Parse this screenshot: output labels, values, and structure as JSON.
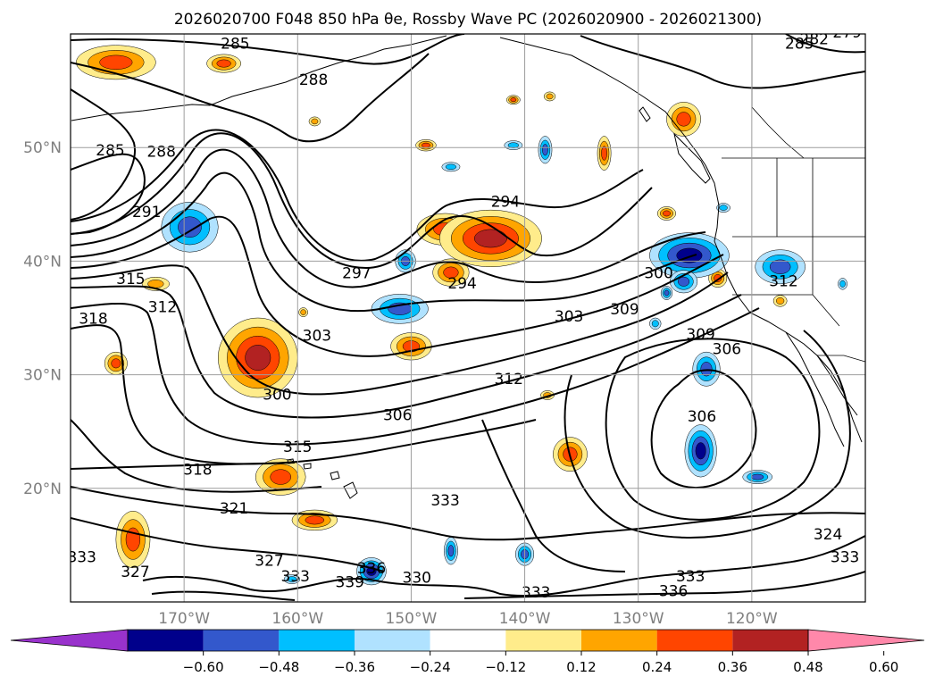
{
  "title": "2026020700 F048 850 hPa θe, Rossby Wave PC (2026020900 - 2026021300)",
  "map": {
    "projection": "plate-carree",
    "lon_range": [
      -180,
      -110
    ],
    "lat_range": [
      10,
      60
    ],
    "lon_ticks": [
      {
        "lon": -170,
        "label": "170°W"
      },
      {
        "lon": -160,
        "label": "160°W"
      },
      {
        "lon": -150,
        "label": "150°W"
      },
      {
        "lon": -140,
        "label": "140°W"
      },
      {
        "lon": -130,
        "label": "130°W"
      },
      {
        "lon": -120,
        "label": "120°W"
      }
    ],
    "lat_ticks": [
      {
        "lat": 50,
        "label": "50°N"
      },
      {
        "lat": 40,
        "label": "40°N"
      },
      {
        "lat": 30,
        "label": "30°N"
      },
      {
        "lat": 20,
        "label": "20°N"
      }
    ],
    "grid": true
  },
  "colorbar": {
    "extend": "both",
    "colors": [
      "#9932CC",
      "#00008B",
      "#3358CC",
      "#00BFFF",
      "#B0E2FF",
      "#FFFFFF",
      "#FFEC8B",
      "#FFA500",
      "#FF4500",
      "#B22222",
      "#FF88AA"
    ],
    "ticks": [
      "−0.60",
      "−0.48",
      "−0.36",
      "−0.24",
      "−0.12",
      "0.12",
      "0.24",
      "0.36",
      "0.48",
      "0.60"
    ]
  },
  "contour_labels": [
    {
      "text": "285",
      "lon": -165.5,
      "lat": 58.7
    },
    {
      "text": "288",
      "lon": -158.6,
      "lat": 55.5
    },
    {
      "text": "285",
      "lon": -176.5,
      "lat": 49.3
    },
    {
      "text": "288",
      "lon": -172.0,
      "lat": 49.2
    },
    {
      "text": "291",
      "lon": -173.3,
      "lat": 43.9
    },
    {
      "text": "297",
      "lon": -154.8,
      "lat": 38.5
    },
    {
      "text": "294",
      "lon": -141.7,
      "lat": 44.8
    },
    {
      "text": "294",
      "lon": -145.5,
      "lat": 37.6
    },
    {
      "text": "303",
      "lon": -158.3,
      "lat": 33.0
    },
    {
      "text": "300",
      "lon": -161.8,
      "lat": 27.8
    },
    {
      "text": "315",
      "lon": -174.7,
      "lat": 38.0
    },
    {
      "text": "318",
      "lon": -178.0,
      "lat": 34.5
    },
    {
      "text": "312",
      "lon": -171.9,
      "lat": 35.5
    },
    {
      "text": "303",
      "lon": -136.1,
      "lat": 34.7
    },
    {
      "text": "309",
      "lon": -131.2,
      "lat": 35.3
    },
    {
      "text": "300",
      "lon": -128.2,
      "lat": 38.5
    },
    {
      "text": "312",
      "lon": -117.2,
      "lat": 37.8
    },
    {
      "text": "309",
      "lon": -124.5,
      "lat": 33.1
    },
    {
      "text": "306",
      "lon": -122.2,
      "lat": 31.8
    },
    {
      "text": "306",
      "lon": -124.4,
      "lat": 25.9
    },
    {
      "text": "312",
      "lon": -141.4,
      "lat": 29.2
    },
    {
      "text": "306",
      "lon": -151.2,
      "lat": 26.0
    },
    {
      "text": "315",
      "lon": -160.0,
      "lat": 23.2
    },
    {
      "text": "318",
      "lon": -168.8,
      "lat": 21.2
    },
    {
      "text": "321",
      "lon": -165.6,
      "lat": 17.8
    },
    {
      "text": "327",
      "lon": -174.3,
      "lat": 12.2
    },
    {
      "text": "327",
      "lon": -162.5,
      "lat": 13.2
    },
    {
      "text": "333",
      "lon": -147.0,
      "lat": 18.5
    },
    {
      "text": "333",
      "lon": -179.0,
      "lat": 13.5
    },
    {
      "text": "333",
      "lon": -160.2,
      "lat": 11.8
    },
    {
      "text": "336",
      "lon": -153.5,
      "lat": 12.5
    },
    {
      "text": "339",
      "lon": -155.4,
      "lat": 11.3
    },
    {
      "text": "330",
      "lon": -149.5,
      "lat": 11.7
    },
    {
      "text": "333",
      "lon": -139.0,
      "lat": 10.4
    },
    {
      "text": "333",
      "lon": -125.4,
      "lat": 11.8
    },
    {
      "text": "336",
      "lon": -126.9,
      "lat": 10.5
    },
    {
      "text": "324",
      "lon": -113.3,
      "lat": 15.5
    },
    {
      "text": "333",
      "lon": -111.8,
      "lat": 13.5
    },
    {
      "text": "279",
      "lon": -111.6,
      "lat": 59.7
    },
    {
      "text": "282",
      "lon": -114.5,
      "lat": 59.1
    },
    {
      "text": "285",
      "lon": -115.8,
      "lat": 58.7
    }
  ],
  "anomaly_shading": {
    "positive": [
      {
        "lon": -176,
        "lat": 57.5,
        "rx": 3.5,
        "ry": 1.5,
        "level": 0.36
      },
      {
        "lon": -166.5,
        "lat": 57.4,
        "rx": 1.5,
        "ry": 0.8,
        "level": 0.36
      },
      {
        "lon": -163.5,
        "lat": 31.5,
        "rx": 3.5,
        "ry": 3.5,
        "level": 0.48
      },
      {
        "lon": -147,
        "lat": 42.8,
        "rx": 2.5,
        "ry": 1.4,
        "level": 0.36
      },
      {
        "lon": -143,
        "lat": 42.0,
        "rx": 4.5,
        "ry": 2.5,
        "level": 0.48
      },
      {
        "lon": -146.5,
        "lat": 39.0,
        "rx": 1.6,
        "ry": 1.2,
        "level": 0.36
      },
      {
        "lon": -150,
        "lat": 32.5,
        "rx": 1.8,
        "ry": 1.2,
        "level": 0.36
      },
      {
        "lon": -126,
        "lat": 52.5,
        "rx": 1.5,
        "ry": 1.5,
        "level": 0.36
      },
      {
        "lon": -172.5,
        "lat": 38.0,
        "rx": 1.2,
        "ry": 0.6,
        "level": 0.24
      },
      {
        "lon": -176,
        "lat": 31.0,
        "rx": 1.0,
        "ry": 1.0,
        "level": 0.36
      },
      {
        "lon": -161.5,
        "lat": 21.0,
        "rx": 2.2,
        "ry": 1.6,
        "level": 0.36
      },
      {
        "lon": -158.5,
        "lat": 17.2,
        "rx": 2.0,
        "ry": 0.9,
        "level": 0.36
      },
      {
        "lon": -174.5,
        "lat": 15.5,
        "rx": 1.5,
        "ry": 2.5,
        "level": 0.36
      },
      {
        "lon": -136,
        "lat": 23.0,
        "rx": 1.5,
        "ry": 1.5,
        "level": 0.36
      },
      {
        "lon": -133,
        "lat": 49.5,
        "rx": 0.6,
        "ry": 1.5,
        "level": 0.36
      },
      {
        "lon": -123,
        "lat": 38.5,
        "rx": 0.8,
        "ry": 0.8,
        "level": 0.36
      },
      {
        "lon": -158.5,
        "lat": 52.3,
        "rx": 0.5,
        "ry": 0.4,
        "level": 0.24
      },
      {
        "lon": -148.7,
        "lat": 50.2,
        "rx": 0.9,
        "ry": 0.5,
        "level": 0.36
      },
      {
        "lon": -141,
        "lat": 54.2,
        "rx": 0.6,
        "ry": 0.4,
        "level": 0.36
      },
      {
        "lon": -137.8,
        "lat": 54.5,
        "rx": 0.5,
        "ry": 0.4,
        "level": 0.24
      },
      {
        "lon": -127.5,
        "lat": 44.2,
        "rx": 0.8,
        "ry": 0.6,
        "level": 0.36
      },
      {
        "lon": -117.5,
        "lat": 36.5,
        "rx": 0.6,
        "ry": 0.5,
        "level": 0.24
      },
      {
        "lon": -159.5,
        "lat": 35.5,
        "rx": 0.4,
        "ry": 0.4,
        "level": 0.24
      },
      {
        "lon": -138,
        "lat": 28.2,
        "rx": 0.6,
        "ry": 0.4,
        "level": 0.24
      }
    ],
    "negative": [
      {
        "lon": -169.5,
        "lat": 43.0,
        "rx": 2.5,
        "ry": 2.2,
        "level": -0.36
      },
      {
        "lon": -151,
        "lat": 35.8,
        "rx": 2.5,
        "ry": 1.3,
        "level": -0.36
      },
      {
        "lon": -150.5,
        "lat": 40.0,
        "rx": 0.9,
        "ry": 1.0,
        "level": -0.36
      },
      {
        "lon": -125.5,
        "lat": 40.5,
        "rx": 3.5,
        "ry": 2.0,
        "level": -0.48
      },
      {
        "lon": -126.0,
        "lat": 38.2,
        "rx": 1.2,
        "ry": 1.0,
        "level": -0.36
      },
      {
        "lon": -117.5,
        "lat": 39.5,
        "rx": 2.2,
        "ry": 1.5,
        "level": -0.36
      },
      {
        "lon": -124.0,
        "lat": 30.5,
        "rx": 1.2,
        "ry": 1.5,
        "level": -0.36
      },
      {
        "lon": -124.5,
        "lat": 23.3,
        "rx": 1.4,
        "ry": 2.3,
        "level": -0.48
      },
      {
        "lon": -119.5,
        "lat": 21.0,
        "rx": 1.3,
        "ry": 0.6,
        "level": -0.36
      },
      {
        "lon": -138.2,
        "lat": 49.8,
        "rx": 0.6,
        "ry": 1.2,
        "level": -0.36
      },
      {
        "lon": -141,
        "lat": 50.2,
        "rx": 0.8,
        "ry": 0.4,
        "level": -0.24
      },
      {
        "lon": -153.5,
        "lat": 12.7,
        "rx": 1.3,
        "ry": 1.2,
        "level": -0.48
      },
      {
        "lon": -146.5,
        "lat": 14.5,
        "rx": 0.6,
        "ry": 1.2,
        "level": -0.36
      },
      {
        "lon": -140,
        "lat": 14.2,
        "rx": 0.8,
        "ry": 1.0,
        "level": -0.36
      },
      {
        "lon": -160.5,
        "lat": 12.0,
        "rx": 0.7,
        "ry": 0.4,
        "level": -0.24
      },
      {
        "lon": -127.5,
        "lat": 37.2,
        "rx": 0.5,
        "ry": 0.6,
        "level": -0.36
      },
      {
        "lon": -122.5,
        "lat": 44.7,
        "rx": 0.6,
        "ry": 0.4,
        "level": -0.24
      },
      {
        "lon": -128.5,
        "lat": 34.5,
        "rx": 0.5,
        "ry": 0.5,
        "level": -0.24
      },
      {
        "lon": -112,
        "lat": 38.0,
        "rx": 0.4,
        "ry": 0.5,
        "level": -0.24
      },
      {
        "lon": -146.5,
        "lat": 48.3,
        "rx": 0.8,
        "ry": 0.4,
        "level": -0.24
      }
    ]
  }
}
